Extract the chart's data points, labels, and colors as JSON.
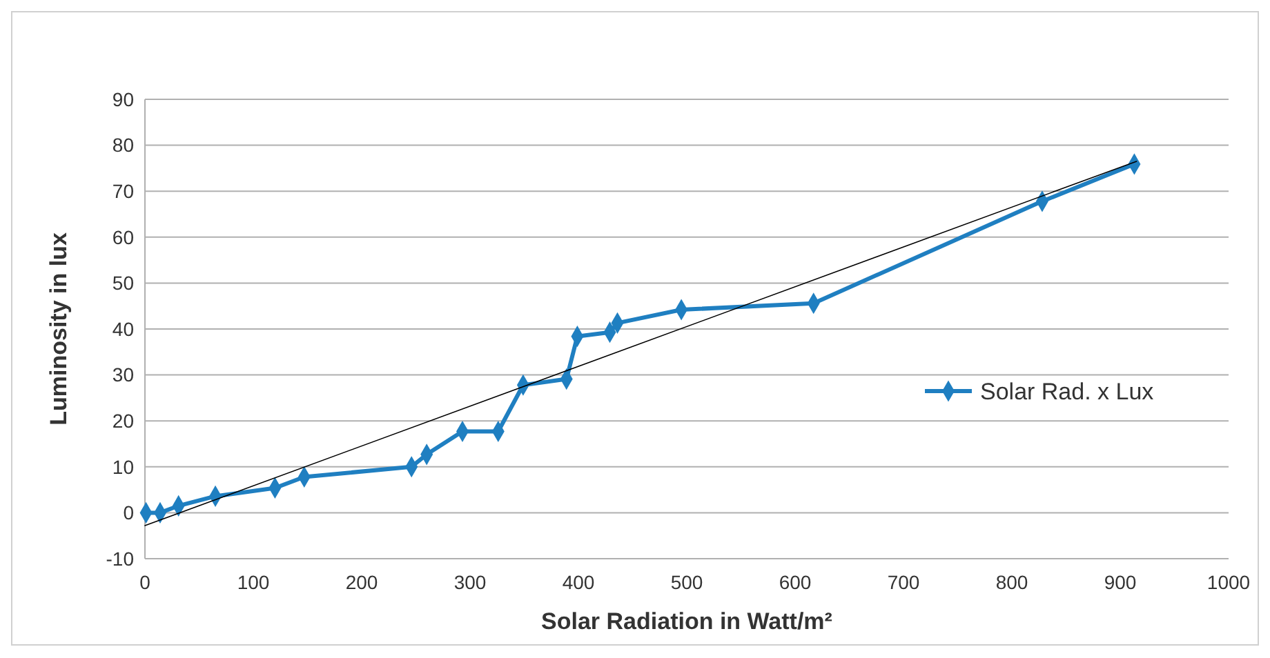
{
  "chart_data": {
    "type": "line",
    "xlabel": "Solar Radiation in Watt/m²",
    "ylabel": "Luminosity in lux",
    "xlim": [
      0,
      1000
    ],
    "xticks": [
      0,
      100,
      200,
      300,
      400,
      500,
      600,
      700,
      800,
      900,
      1000
    ],
    "ylim": [
      -10,
      90
    ],
    "yticks": [
      -10,
      0,
      10,
      20,
      30,
      40,
      50,
      60,
      70,
      80,
      90
    ],
    "grid": "y",
    "legend": "right",
    "marker": "diamond",
    "line_style": "solid",
    "series": [
      {
        "name": "Solar Rad. x Lux",
        "color": "#1f7fc1",
        "x": [
          1,
          14,
          31,
          65,
          120,
          147,
          246,
          260,
          293,
          326,
          349,
          389,
          399,
          429,
          436,
          495,
          617,
          828,
          913
        ],
        "values": [
          0,
          0,
          1.5,
          3.6,
          5.4,
          7.8,
          10,
          12.7,
          17.7,
          17.7,
          27.8,
          29.1,
          38.4,
          39.3,
          41.3,
          44.2,
          45.6,
          67.8,
          75.9
        ]
      },
      {
        "color": "#000000",
        "marker": "none",
        "x": [
          0,
          915
        ],
        "values": [
          -2.8,
          76.5
        ]
      }
    ]
  }
}
